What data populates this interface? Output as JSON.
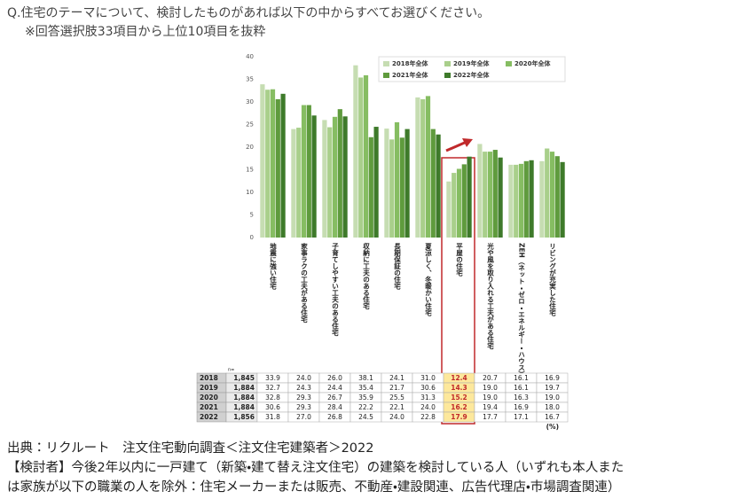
{
  "header": {
    "question": "Q.住宅のテーマについて、検討したものがあれば以下の中からすべてお選びください。",
    "note": "※回答選択肢33項目から上位10項目を抜粋"
  },
  "footer": {
    "source": "出典：リクルート　注文住宅動向調査＜注文住宅建築者＞2022",
    "note_line1": "【検討者】今後2年以内に一戸建て（新築・建て替え注文住宅）の建築を検討している人（いずれも本人また",
    "note_line2": "は家族が以下の職業の人を除外：住宅メーカーまたは販売、不動産・建設関連、広告代理店・市場調査関連）"
  },
  "chart_data": {
    "type": "bar",
    "categories": [
      "地震に強い住宅",
      "家事ラクの工夫がある住宅",
      "子育てしやすい工夫のある住宅",
      "収納に工夫のある住宅",
      "長期保証の住宅",
      "夏涼しく、冬暖かい住宅",
      "平屋の住宅",
      "光や風を取り入れる工夫がある住宅",
      "ZEH（ネット・ゼロ・エネルギー・ハウス）",
      "リビングが充実した住宅"
    ],
    "ylim": [
      0,
      40
    ],
    "yticks": [
      0,
      5,
      10,
      15,
      20,
      25,
      30,
      35,
      40
    ],
    "grid": false,
    "table_n_header": "n=",
    "table_unit": "(%)",
    "series": [
      {
        "name": "2018年全体",
        "row_label": "2018",
        "n_label": "1,845",
        "color": "#c6ddb2",
        "values": [
          33.9,
          24.0,
          26.0,
          38.1,
          24.1,
          31.0,
          12.4,
          20.7,
          16.1,
          16.9
        ],
        "value_labels": [
          "33.9",
          "24.0",
          "26.0",
          "38.1",
          "24.1",
          "31.0",
          "12.4",
          "20.7",
          "16.1",
          "16.9"
        ]
      },
      {
        "name": "2019年全体",
        "row_label": "2019",
        "n_label": "1,884",
        "color": "#a9cf8b",
        "values": [
          32.7,
          24.3,
          24.4,
          35.4,
          21.7,
          30.6,
          14.3,
          19.0,
          16.1,
          19.7
        ],
        "value_labels": [
          "32.7",
          "24.3",
          "24.4",
          "35.4",
          "21.7",
          "30.6",
          "14.3",
          "19.0",
          "16.1",
          "19.7"
        ]
      },
      {
        "name": "2020年全体",
        "row_label": "2020",
        "n_label": "1,884",
        "color": "#86bd62",
        "values": [
          32.8,
          29.3,
          26.7,
          35.9,
          25.5,
          31.3,
          15.2,
          19.0,
          16.3,
          19.0
        ],
        "value_labels": [
          "32.8",
          "29.3",
          "26.7",
          "35.9",
          "25.5",
          "31.3",
          "15.2",
          "19.0",
          "16.3",
          "19.0"
        ]
      },
      {
        "name": "2021年全体",
        "row_label": "2021",
        "n_label": "1,884",
        "color": "#5f9b3d",
        "values": [
          30.6,
          29.3,
          28.4,
          22.2,
          22.1,
          24.0,
          16.2,
          19.4,
          16.9,
          18.0
        ],
        "value_labels": [
          "30.6",
          "29.3",
          "28.4",
          "22.2",
          "22.1",
          "24.0",
          "16.2",
          "19.4",
          "16.9",
          "18.0"
        ]
      },
      {
        "name": "2022年全体",
        "row_label": "2022",
        "n_label": "1,856",
        "color": "#3e7a2a",
        "values": [
          31.8,
          27.0,
          26.8,
          24.5,
          24.0,
          22.8,
          17.9,
          17.7,
          17.1,
          16.7
        ],
        "value_labels": [
          "31.8",
          "27.0",
          "26.8",
          "24.5",
          "24.0",
          "22.8",
          "17.9",
          "17.7",
          "17.1",
          "16.7"
        ]
      }
    ]
  }
}
